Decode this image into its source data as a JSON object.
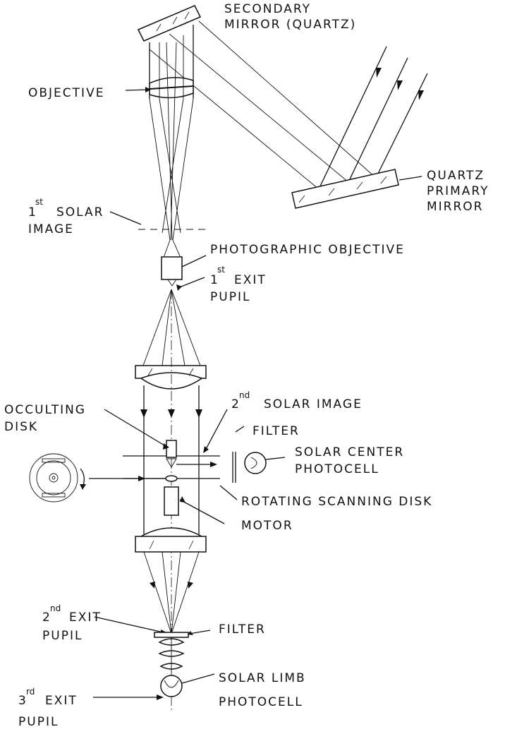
{
  "labels": {
    "secondary_mirror_1": "SECONDARY",
    "secondary_mirror_2": "MIRROR (QUARTZ)",
    "objective": "OBJECTIVE",
    "quartz_1": "QUARTZ",
    "quartz_2": "PRIMARY",
    "quartz_3": "MIRROR",
    "first_solar_1": "1",
    "first_solar_sup": "st",
    "first_solar_2": "SOLAR",
    "first_solar_3": "IMAGE",
    "photo_objective": "PHOTOGRAPHIC OBJECTIVE",
    "first_exit_sup": "st",
    "first_exit_1": "1",
    "first_exit_2": "EXIT",
    "first_exit_3": "PUPIL",
    "second_solar_1": "2",
    "second_solar_sup": "nd",
    "second_solar_2": "SOLAR IMAGE",
    "occulting_1": "OCCULTING",
    "occulting_2": "DISK",
    "filter_top": "FILTER",
    "solar_center_1": "SOLAR CENTER",
    "solar_center_2": "PHOTOCELL",
    "rotating_disk": "ROTATING SCANNING DISK",
    "motor": "MOTOR",
    "second_exit_1": "2",
    "second_exit_sup": "nd",
    "second_exit_2": "EXIT",
    "second_exit_3": "PUPIL",
    "filter_bottom": "FILTER",
    "solar_limb_1": "SOLAR LIMB",
    "solar_limb_2": "PHOTOCELL",
    "third_exit_1": "3",
    "third_exit_sup": "rd",
    "third_exit_2": "EXIT",
    "third_exit_3": "PUPIL"
  }
}
